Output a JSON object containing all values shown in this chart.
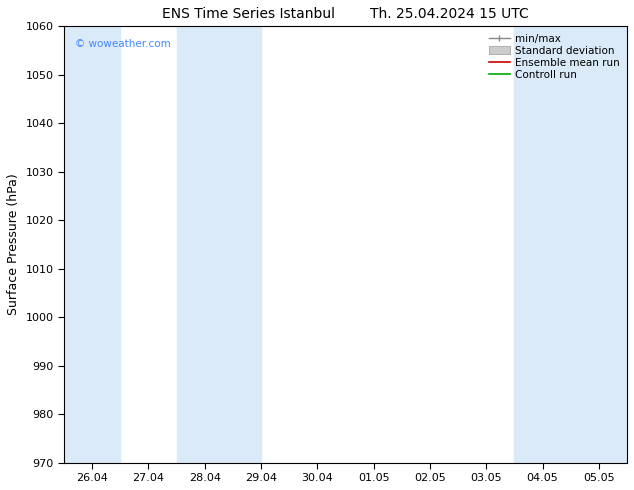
{
  "title": "ENS Time Series Istanbul",
  "title2": "Th. 25.04.2024 15 UTC",
  "ylabel": "Surface Pressure (hPa)",
  "ylim": [
    970,
    1060
  ],
  "yticks": [
    970,
    980,
    990,
    1000,
    1010,
    1020,
    1030,
    1040,
    1050,
    1060
  ],
  "xtick_labels": [
    "26.04",
    "27.04",
    "28.04",
    "29.04",
    "30.04",
    "01.05",
    "02.05",
    "03.05",
    "04.05",
    "05.05"
  ],
  "xtick_positions": [
    0,
    1,
    2,
    3,
    4,
    5,
    6,
    7,
    8,
    9
  ],
  "xlim": [
    -0.5,
    9.5
  ],
  "shaded_bands": [
    {
      "xmin": -0.5,
      "xmax": 0.5
    },
    {
      "xmin": 1.5,
      "xmax": 3.0
    },
    {
      "xmin": 7.5,
      "xmax": 9.5
    }
  ],
  "shade_color": "#daeaf8",
  "background_color": "#ffffff",
  "plot_bg_color": "#ffffff",
  "watermark": "© woweather.com",
  "watermark_color": "#4488ff",
  "legend_labels": [
    "min/max",
    "Standard deviation",
    "Ensemble mean run",
    "Controll run"
  ],
  "title_fontsize": 10,
  "axis_label_fontsize": 9,
  "tick_fontsize": 8,
  "legend_fontsize": 7.5,
  "figwidth": 6.34,
  "figheight": 4.9,
  "dpi": 100
}
